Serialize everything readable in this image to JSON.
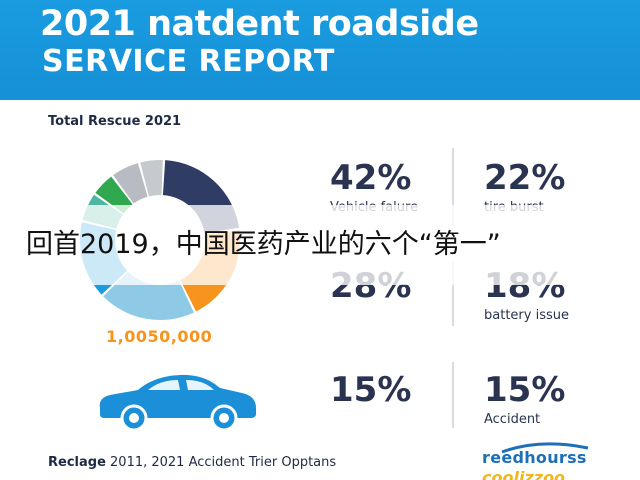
{
  "header": {
    "title_line1": "2021 natdent roadside",
    "title_line2": "SERVICE REPORT"
  },
  "section_label": "Total Rescue 2021",
  "total_value": "1,0050,000",
  "stats": [
    {
      "pct": "42%",
      "label": "Vehicle falure"
    },
    {
      "pct": "22%",
      "label": "tire burst"
    },
    {
      "pct": "28%",
      "label": ""
    },
    {
      "pct": "18%",
      "label": "battery issue"
    },
    {
      "pct": "15%",
      "label": ""
    },
    {
      "pct": "15%",
      "label": "Accident"
    }
  ],
  "overlay_text": "回首2019，中国医药产业的六个“第一”",
  "footer": {
    "bold_part": "Reclage",
    "rest": " 2011, 2021 Accident Trier Opptans"
  },
  "logo": {
    "line1": "reedhourss",
    "line2": "coolizzoo"
  },
  "colors": {
    "header_bg": "#1a9ce0",
    "navy": "#2f3c63",
    "orange": "#f7941d",
    "light_blue": "#8ecae6",
    "blue": "#1a9ce0",
    "teal": "#4fb7a1",
    "green": "#2fa84f",
    "gray": "#b8bcc2",
    "car_blue": "#1b8fd8"
  },
  "chart_data": {
    "type": "pie",
    "variant": "donut",
    "title": "",
    "slices": [
      {
        "value": 22,
        "color": "#2f3c63"
      },
      {
        "value": 20,
        "color": "#f7941d"
      },
      {
        "value": 20,
        "color": "#8ecae6"
      },
      {
        "value": 16,
        "color": "#1a9ce0"
      },
      {
        "value": 6,
        "color": "#4fb7a1"
      },
      {
        "value": 5,
        "color": "#2fa84f"
      },
      {
        "value": 6,
        "color": "#b8bcc2"
      },
      {
        "value": 5,
        "color": "#c6c9ce"
      }
    ],
    "center_label": "",
    "legend": "none"
  }
}
